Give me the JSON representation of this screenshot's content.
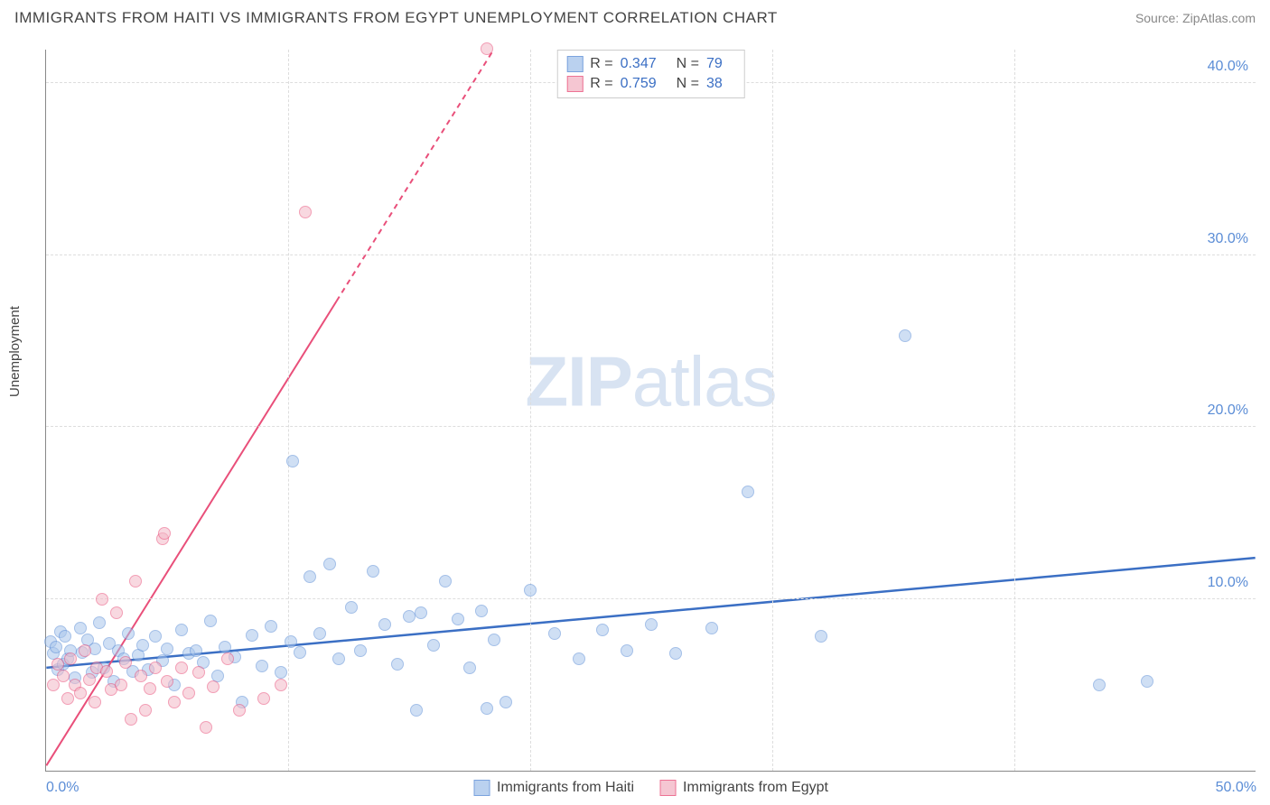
{
  "header": {
    "title": "IMMIGRANTS FROM HAITI VS IMMIGRANTS FROM EGYPT UNEMPLOYMENT CORRELATION CHART",
    "source": "Source: ZipAtlas.com"
  },
  "chart": {
    "type": "scatter",
    "ylabel": "Unemployment",
    "watermark_bold": "ZIP",
    "watermark_rest": "atlas",
    "background_color": "#ffffff",
    "grid_color": "#dddddd",
    "axis_color": "#888888",
    "tick_color": "#5b8dd6",
    "tick_fontsize": 16,
    "xlim": [
      0,
      50
    ],
    "ylim": [
      0,
      42
    ],
    "xticks": [
      0,
      10,
      20,
      30,
      40,
      50
    ],
    "xtick_labels": [
      "0.0%",
      "",
      "",
      "",
      "",
      "50.0%"
    ],
    "yticks": [
      10,
      20,
      30,
      40
    ],
    "ytick_labels": [
      "10.0%",
      "20.0%",
      "30.0%",
      "40.0%"
    ],
    "marker_radius": 7,
    "marker_stroke_width": 1,
    "series": [
      {
        "name": "Immigrants from Haiti",
        "fill": "#a9c6ec",
        "stroke": "#5b8dd6",
        "fill_opacity": 0.55,
        "R": "0.347",
        "N": "79",
        "trend": {
          "x1": 0,
          "y1": 6.0,
          "x2": 50,
          "y2": 12.4,
          "color": "#3b6fc4",
          "width": 2.5,
          "dash": "",
          "dash2_from_x": null
        },
        "points": [
          [
            0.2,
            7.5
          ],
          [
            0.3,
            6.8
          ],
          [
            0.4,
            7.2
          ],
          [
            0.5,
            5.9
          ],
          [
            0.6,
            8.1
          ],
          [
            0.7,
            6.2
          ],
          [
            0.8,
            7.8
          ],
          [
            0.9,
            6.5
          ],
          [
            1.0,
            7.0
          ],
          [
            1.2,
            5.4
          ],
          [
            1.4,
            8.3
          ],
          [
            1.5,
            6.9
          ],
          [
            1.7,
            7.6
          ],
          [
            1.9,
            5.7
          ],
          [
            2.0,
            7.1
          ],
          [
            2.2,
            8.6
          ],
          [
            2.4,
            6.0
          ],
          [
            2.6,
            7.4
          ],
          [
            2.8,
            5.2
          ],
          [
            3.0,
            7.0
          ],
          [
            3.2,
            6.5
          ],
          [
            3.4,
            8.0
          ],
          [
            3.6,
            5.8
          ],
          [
            3.8,
            6.7
          ],
          [
            4.0,
            7.3
          ],
          [
            4.2,
            5.9
          ],
          [
            4.5,
            7.8
          ],
          [
            4.8,
            6.4
          ],
          [
            5.0,
            7.1
          ],
          [
            5.3,
            5.0
          ],
          [
            5.6,
            8.2
          ],
          [
            5.9,
            6.8
          ],
          [
            6.2,
            7.0
          ],
          [
            6.5,
            6.3
          ],
          [
            6.8,
            8.7
          ],
          [
            7.1,
            5.5
          ],
          [
            7.4,
            7.2
          ],
          [
            7.8,
            6.6
          ],
          [
            8.1,
            4.0
          ],
          [
            8.5,
            7.9
          ],
          [
            8.9,
            6.1
          ],
          [
            9.3,
            8.4
          ],
          [
            9.7,
            5.7
          ],
          [
            10.1,
            7.5
          ],
          [
            10.2,
            18.0
          ],
          [
            10.5,
            6.9
          ],
          [
            10.9,
            11.3
          ],
          [
            11.3,
            8.0
          ],
          [
            11.7,
            12.0
          ],
          [
            12.1,
            6.5
          ],
          [
            12.6,
            9.5
          ],
          [
            13.0,
            7.0
          ],
          [
            13.5,
            11.6
          ],
          [
            14.0,
            8.5
          ],
          [
            14.5,
            6.2
          ],
          [
            15.0,
            9.0
          ],
          [
            15.3,
            3.5
          ],
          [
            15.5,
            9.2
          ],
          [
            16.0,
            7.3
          ],
          [
            16.5,
            11.0
          ],
          [
            17.0,
            8.8
          ],
          [
            17.5,
            6.0
          ],
          [
            18.0,
            9.3
          ],
          [
            18.2,
            3.6
          ],
          [
            18.5,
            7.6
          ],
          [
            19.0,
            4.0
          ],
          [
            20.0,
            10.5
          ],
          [
            21.0,
            8.0
          ],
          [
            22.0,
            6.5
          ],
          [
            23.0,
            8.2
          ],
          [
            24.0,
            7.0
          ],
          [
            25.0,
            8.5
          ],
          [
            26.0,
            6.8
          ],
          [
            27.5,
            8.3
          ],
          [
            29.0,
            16.2
          ],
          [
            32.0,
            7.8
          ],
          [
            35.5,
            25.3
          ],
          [
            43.5,
            5.0
          ],
          [
            45.5,
            5.2
          ]
        ]
      },
      {
        "name": "Immigrants from Egypt",
        "fill": "#f3b9c7",
        "stroke": "#e94f7a",
        "fill_opacity": 0.55,
        "R": "0.759",
        "N": "38",
        "trend": {
          "x1": 0,
          "y1": 0.3,
          "x2": 18.5,
          "y2": 42.0,
          "color": "#e94f7a",
          "width": 2,
          "dash": "",
          "dash2_from_x": 12.0
        },
        "points": [
          [
            0.3,
            5.0
          ],
          [
            0.5,
            6.2
          ],
          [
            0.7,
            5.5
          ],
          [
            0.9,
            4.2
          ],
          [
            1.0,
            6.5
          ],
          [
            1.2,
            5.0
          ],
          [
            1.4,
            4.5
          ],
          [
            1.6,
            7.0
          ],
          [
            1.8,
            5.3
          ],
          [
            2.0,
            4.0
          ],
          [
            2.1,
            6.0
          ],
          [
            2.3,
            10.0
          ],
          [
            2.5,
            5.8
          ],
          [
            2.7,
            4.7
          ],
          [
            2.9,
            9.2
          ],
          [
            3.1,
            5.0
          ],
          [
            3.3,
            6.3
          ],
          [
            3.5,
            3.0
          ],
          [
            3.7,
            11.0
          ],
          [
            3.9,
            5.5
          ],
          [
            4.1,
            3.5
          ],
          [
            4.3,
            4.8
          ],
          [
            4.5,
            6.0
          ],
          [
            4.8,
            13.5
          ],
          [
            4.9,
            13.8
          ],
          [
            5.0,
            5.2
          ],
          [
            5.3,
            4.0
          ],
          [
            5.6,
            6.0
          ],
          [
            5.9,
            4.5
          ],
          [
            6.3,
            5.7
          ],
          [
            6.6,
            2.5
          ],
          [
            6.9,
            4.9
          ],
          [
            7.5,
            6.5
          ],
          [
            8.0,
            3.5
          ],
          [
            9.0,
            4.2
          ],
          [
            9.7,
            5.0
          ],
          [
            10.7,
            32.5
          ],
          [
            18.2,
            42.0
          ]
        ]
      }
    ]
  },
  "legend": {
    "label_r": "R =",
    "label_n": "N ="
  }
}
